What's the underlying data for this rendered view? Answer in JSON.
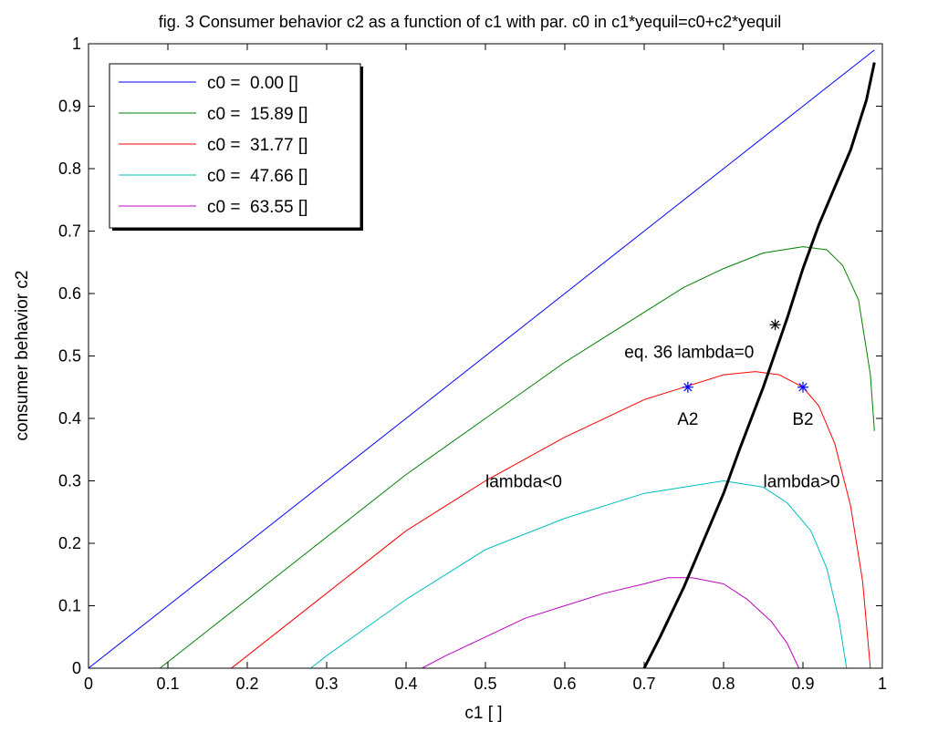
{
  "chart_data": {
    "type": "line",
    "title": "fig. 3 Consumer behavior c2 as a function of c1 with par. c0 in c1*yequil=c0+c2*yequil",
    "xlabel": "c1 [ ]",
    "ylabel": "consumer behavior c2",
    "xlim": [
      0,
      1
    ],
    "ylim": [
      0,
      1
    ],
    "xticks": [
      "0",
      "0.1",
      "0.2",
      "0.3",
      "0.4",
      "0.5",
      "0.6",
      "0.7",
      "0.8",
      "0.9",
      "1"
    ],
    "yticks": [
      "0",
      "0.1",
      "0.2",
      "0.3",
      "0.4",
      "0.5",
      "0.6",
      "0.7",
      "0.8",
      "0.9",
      "1"
    ],
    "grid": false,
    "legend_position": "top-left",
    "series": [
      {
        "name": "c0 =  0.00 []",
        "color": "#0000ff",
        "x": [
          0.0,
          0.1,
          0.2,
          0.3,
          0.4,
          0.5,
          0.6,
          0.7,
          0.8,
          0.9,
          0.99
        ],
        "y": [
          0.0,
          0.1,
          0.2,
          0.3,
          0.4,
          0.5,
          0.6,
          0.7,
          0.8,
          0.9,
          0.99
        ]
      },
      {
        "name": "c0 =  15.89 []",
        "color": "#008000",
        "x": [
          0.09,
          0.15,
          0.2,
          0.3,
          0.4,
          0.5,
          0.6,
          0.7,
          0.75,
          0.8,
          0.85,
          0.9,
          0.93,
          0.95,
          0.97,
          0.985,
          0.99
        ],
        "y": [
          0.0,
          0.06,
          0.11,
          0.21,
          0.31,
          0.4,
          0.49,
          0.57,
          0.61,
          0.64,
          0.665,
          0.675,
          0.67,
          0.645,
          0.59,
          0.47,
          0.38
        ]
      },
      {
        "name": "c0 =  31.77 []",
        "color": "#ff0000",
        "x": [
          0.18,
          0.2,
          0.3,
          0.4,
          0.5,
          0.6,
          0.7,
          0.75,
          0.8,
          0.84,
          0.87,
          0.9,
          0.92,
          0.94,
          0.96,
          0.975,
          0.985
        ],
        "y": [
          0.0,
          0.02,
          0.12,
          0.22,
          0.3,
          0.37,
          0.43,
          0.45,
          0.47,
          0.475,
          0.47,
          0.45,
          0.42,
          0.36,
          0.26,
          0.14,
          0.0
        ]
      },
      {
        "name": "c0 =  47.66 []",
        "color": "#00bfbf",
        "x": [
          0.28,
          0.3,
          0.4,
          0.5,
          0.6,
          0.7,
          0.75,
          0.8,
          0.85,
          0.88,
          0.91,
          0.93,
          0.945,
          0.955
        ],
        "y": [
          0.0,
          0.02,
          0.11,
          0.19,
          0.24,
          0.28,
          0.29,
          0.3,
          0.29,
          0.265,
          0.22,
          0.16,
          0.08,
          0.0
        ]
      },
      {
        "name": "c0 =  63.55 []",
        "color": "#bf00bf",
        "x": [
          0.42,
          0.45,
          0.5,
          0.55,
          0.6,
          0.65,
          0.7,
          0.73,
          0.76,
          0.8,
          0.83,
          0.86,
          0.88,
          0.895
        ],
        "y": [
          0.0,
          0.02,
          0.05,
          0.08,
          0.1,
          0.12,
          0.135,
          0.145,
          0.145,
          0.135,
          0.11,
          0.075,
          0.04,
          0.0
        ]
      },
      {
        "name": "",
        "color": "#000000",
        "line_width": 3,
        "x": [
          0.7,
          0.72,
          0.75,
          0.78,
          0.8,
          0.82,
          0.85,
          0.88,
          0.9,
          0.92,
          0.94,
          0.96,
          0.98,
          0.99
        ],
        "y": [
          0.0,
          0.05,
          0.13,
          0.22,
          0.28,
          0.35,
          0.45,
          0.56,
          0.64,
          0.71,
          0.77,
          0.83,
          0.91,
          0.97
        ]
      }
    ],
    "markers": [
      {
        "x": 0.865,
        "y": 0.55,
        "color": "#000000"
      },
      {
        "x": 0.755,
        "y": 0.45,
        "color": "#0000ff"
      },
      {
        "x": 0.9,
        "y": 0.45,
        "color": "#0000ff"
      }
    ],
    "annotations": [
      {
        "text": "eq. 36 lambda=0",
        "x": 0.675,
        "y": 0.497
      },
      {
        "text": "A2",
        "x": 0.755,
        "y": 0.39
      },
      {
        "text": "B2",
        "x": 0.9,
        "y": 0.39
      },
      {
        "text": "lambda<0",
        "x": 0.5,
        "y": 0.29
      },
      {
        "text": "lambda>0",
        "x": 0.85,
        "y": 0.29
      }
    ]
  }
}
